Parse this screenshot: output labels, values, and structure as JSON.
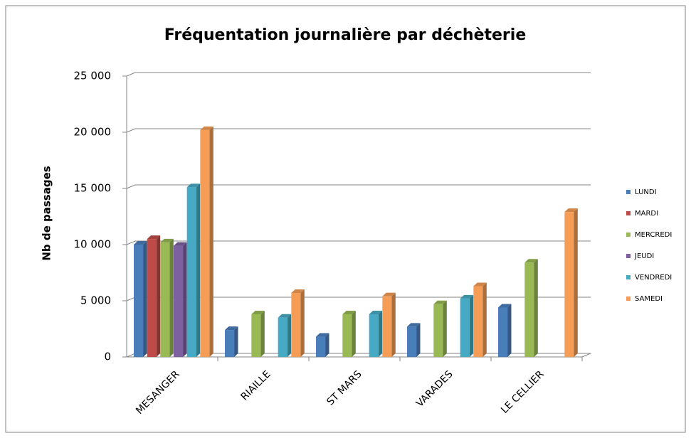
{
  "chart_data": {
    "type": "bar",
    "title": "Fréquentation journalière par déchèterie",
    "y_label": "Nb  de passages",
    "categories": [
      "MESANGER",
      "RIAILLE",
      "ST MARS",
      "VARADES",
      "LE CELLIER"
    ],
    "series": [
      {
        "name": "LUNDI",
        "color": "#4a7ebb",
        "values": [
          10000,
          2400,
          1800,
          2700,
          4400
        ]
      },
      {
        "name": "MARDI",
        "color": "#be4b48",
        "values": [
          10500,
          null,
          null,
          null,
          null
        ]
      },
      {
        "name": "MERCREDI",
        "color": "#98b954",
        "values": [
          10200,
          3800,
          3800,
          4700,
          8400
        ]
      },
      {
        "name": "JEUDI",
        "color": "#7d60a0",
        "values": [
          9900,
          null,
          null,
          null,
          null
        ]
      },
      {
        "name": "VENDREDI",
        "color": "#46aac5",
        "values": [
          15100,
          3500,
          3800,
          5200,
          null
        ]
      },
      {
        "name": "SAMEDI",
        "color": "#f59d56",
        "values": [
          20200,
          5700,
          5400,
          6300,
          12900
        ]
      }
    ],
    "ylim": [
      0,
      25000
    ],
    "yticks": [
      0,
      {
        "value": 5000,
        "label": "5 000"
      },
      {
        "value": 10000,
        "label": "10 000"
      },
      {
        "value": 15000,
        "label": "15 000"
      },
      {
        "value": 20000,
        "label": "20 000"
      },
      {
        "value": 25000,
        "label": "25 000"
      }
    ],
    "grid": true,
    "legend": "right"
  }
}
